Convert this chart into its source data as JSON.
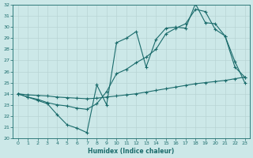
{
  "xlabel": "Humidex (Indice chaleur)",
  "bg_color": "#cce8e8",
  "line_color": "#1a6b6b",
  "grid_color": "#aacccc",
  "ylim": [
    20,
    32
  ],
  "xlim": [
    -0.5,
    23.5
  ],
  "yticks": [
    20,
    21,
    22,
    23,
    24,
    25,
    26,
    27,
    28,
    29,
    30,
    31,
    32
  ],
  "xticks": [
    0,
    1,
    2,
    3,
    4,
    5,
    6,
    7,
    8,
    9,
    10,
    11,
    12,
    13,
    14,
    15,
    16,
    17,
    18,
    19,
    20,
    21,
    22,
    23
  ],
  "line1_x": [
    0,
    1,
    2,
    3,
    4,
    5,
    6,
    7,
    8,
    9,
    10,
    11,
    12,
    13,
    14,
    15,
    16,
    17,
    18,
    19,
    20,
    21,
    22,
    23
  ],
  "line1_y": [
    24,
    23.7,
    23.4,
    23.1,
    22.1,
    21.2,
    20.9,
    20.5,
    24.8,
    23.0,
    28.6,
    29.0,
    29.6,
    26.4,
    28.9,
    29.9,
    30.0,
    29.9,
    32.1,
    30.4,
    30.3,
    29.2,
    26.4,
    25.5
  ],
  "line2_x": [
    0,
    1,
    2,
    3,
    4,
    5,
    6,
    7,
    8,
    9,
    10,
    11,
    12,
    13,
    14,
    15,
    16,
    17,
    18,
    19,
    20,
    21,
    22,
    23
  ],
  "line2_y": [
    24,
    23.7,
    23.5,
    23.2,
    23.0,
    22.9,
    22.7,
    22.6,
    23.1,
    24.2,
    25.8,
    26.2,
    26.8,
    27.3,
    28.0,
    29.4,
    29.9,
    30.3,
    31.6,
    31.4,
    29.8,
    29.2,
    26.9,
    25.0
  ],
  "line3_x": [
    0,
    1,
    2,
    3,
    4,
    5,
    6,
    7,
    8,
    9,
    10,
    11,
    12,
    13,
    14,
    15,
    16,
    17,
    18,
    19,
    20,
    21,
    22,
    23
  ],
  "line3_y": [
    24,
    23.9,
    23.85,
    23.8,
    23.7,
    23.65,
    23.6,
    23.55,
    23.6,
    23.7,
    23.8,
    23.9,
    24.0,
    24.15,
    24.3,
    24.45,
    24.6,
    24.75,
    24.9,
    25.0,
    25.1,
    25.2,
    25.35,
    25.5
  ]
}
